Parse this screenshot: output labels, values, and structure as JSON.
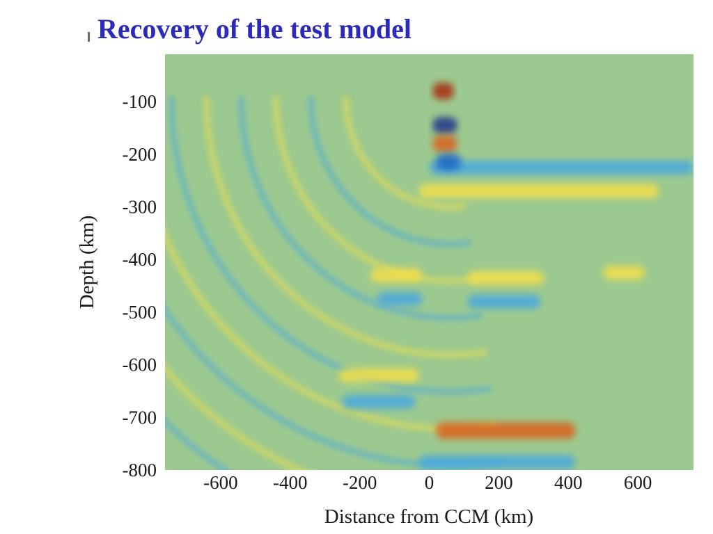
{
  "slide": {
    "title": "Recovery of the test model"
  },
  "chart_data": {
    "type": "heatmap",
    "title": "",
    "xlabel": "Distance from CCM (km)",
    "ylabel": "Depth (km)",
    "xlim": [
      -760,
      760
    ],
    "ylim": [
      -800,
      -10
    ],
    "xticks": [
      -600,
      -400,
      -200,
      0,
      200,
      400,
      600
    ],
    "yticks": [
      -100,
      -200,
      -300,
      -400,
      -500,
      -600,
      -700,
      -800
    ],
    "colormap": {
      "background": "#9cc98f",
      "positive_weak": "#f4e04a",
      "positive_strong": "#d9621f",
      "positive_max": "#a82a10",
      "negative_weak": "#4aa8e0",
      "negative_strong": "#1f66c6",
      "negative_max": "#23348a"
    },
    "features": [
      {
        "label": "410 km discontinuity, yellow (positive)",
        "x": [
          -170,
          -20
        ],
        "depth": -430,
        "amplitude": 0.7
      },
      {
        "label": "410 km discontinuity, yellow (positive)",
        "x": [
          110,
          330
        ],
        "depth": -435,
        "amplitude": 0.75
      },
      {
        "label": "410 km discontinuity, yellow (positive)",
        "x": [
          500,
          620
        ],
        "depth": -425,
        "amplitude": 0.6
      },
      {
        "label": "410 km sidelobe, blue (negative)",
        "x": [
          -150,
          -20
        ],
        "depth": -475,
        "amplitude": -0.55
      },
      {
        "label": "410 km sidelobe, blue (negative)",
        "x": [
          110,
          320
        ],
        "depth": -480,
        "amplitude": -0.6
      },
      {
        "label": "660 km discontinuity, yellow (positive)",
        "x": [
          -260,
          -30
        ],
        "depth": -620,
        "amplitude": 0.8
      },
      {
        "label": "660 km sidelobe, blue (negative)",
        "x": [
          -250,
          -40
        ],
        "depth": -670,
        "amplitude": -0.6
      },
      {
        "label": "deep feature, orange (positive)",
        "x": [
          20,
          420
        ],
        "depth": -725,
        "amplitude": 0.9
      },
      {
        "label": "deep sidelobe, blue (negative)",
        "x": [
          -30,
          420
        ],
        "depth": -785,
        "amplitude": -0.65
      },
      {
        "label": "shallow layer, dark blue (negative)",
        "x": [
          0,
          760
        ],
        "depth": -225,
        "amplitude": -0.75
      },
      {
        "label": "shallow layer, yellow (positive)",
        "x": [
          -30,
          660
        ],
        "depth": -270,
        "amplitude": 0.6
      },
      {
        "label": "near-surface, red (positive)",
        "x": [
          10,
          70
        ],
        "depth": -80,
        "amplitude": 1.0
      },
      {
        "label": "near-surface, dark blue (negative)",
        "x": [
          10,
          80
        ],
        "depth": -145,
        "amplitude": -1.0
      },
      {
        "label": "near-surface, red (positive)",
        "x": [
          10,
          80
        ],
        "depth": -180,
        "amplitude": 0.95
      },
      {
        "label": "near-surface, dark blue (negative)",
        "x": [
          20,
          90
        ],
        "depth": -215,
        "amplitude": -0.9
      }
    ]
  }
}
